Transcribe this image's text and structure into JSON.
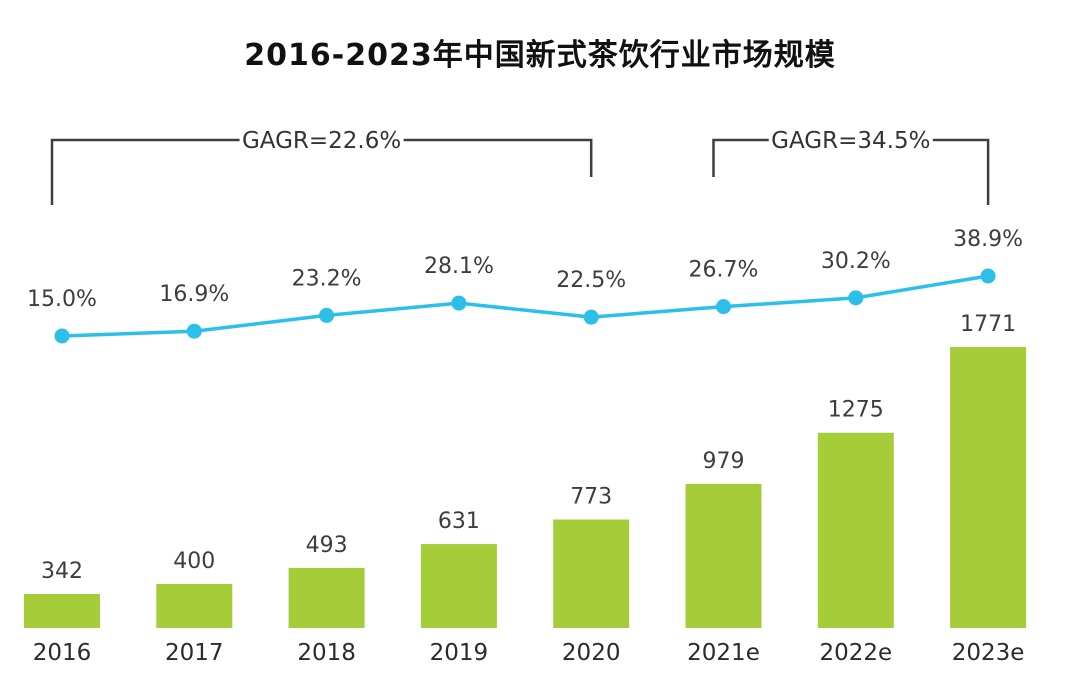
{
  "title": "2016-2023年中国新式茶饮行业市场规模",
  "colors": {
    "bar": "#a5cd39",
    "line": "#2bbfe9",
    "value_label": "#3d3d3d",
    "axis_label": "#2b2b2b",
    "title": "#111111",
    "bracket": "#3f3f3f"
  },
  "brackets": [
    {
      "label": "GAGR=22.6%",
      "from": 0,
      "to": 4
    },
    {
      "label": "GAGR=34.5%",
      "from": 5,
      "to": 7
    }
  ],
  "chart_data": {
    "type": "bar",
    "title": "2016-2023年中国新式茶饮行业市场规模",
    "categories": [
      "2016",
      "2017",
      "2018",
      "2019",
      "2020",
      "2021e",
      "2022e",
      "2023e"
    ],
    "series": [
      {
        "name": "market-size",
        "type": "bar",
        "values": [
          342,
          400,
          493,
          631,
          773,
          979,
          1275,
          1771
        ],
        "color": "#a5cd39"
      },
      {
        "name": "growth-rate",
        "type": "line",
        "values": [
          15.0,
          16.9,
          23.2,
          28.1,
          22.5,
          26.7,
          30.2,
          38.9
        ],
        "labels": [
          "15.0%",
          "16.9%",
          "23.2%",
          "28.1%",
          "22.5%",
          "26.7%",
          "30.2%",
          "38.9%"
        ],
        "color": "#2bbfe9"
      }
    ],
    "annotations": [
      "GAGR=22.6%",
      "GAGR=34.5%"
    ],
    "legend": "none",
    "grid": false,
    "axis_lines": "none",
    "xlabel": "",
    "ylabel": ""
  }
}
